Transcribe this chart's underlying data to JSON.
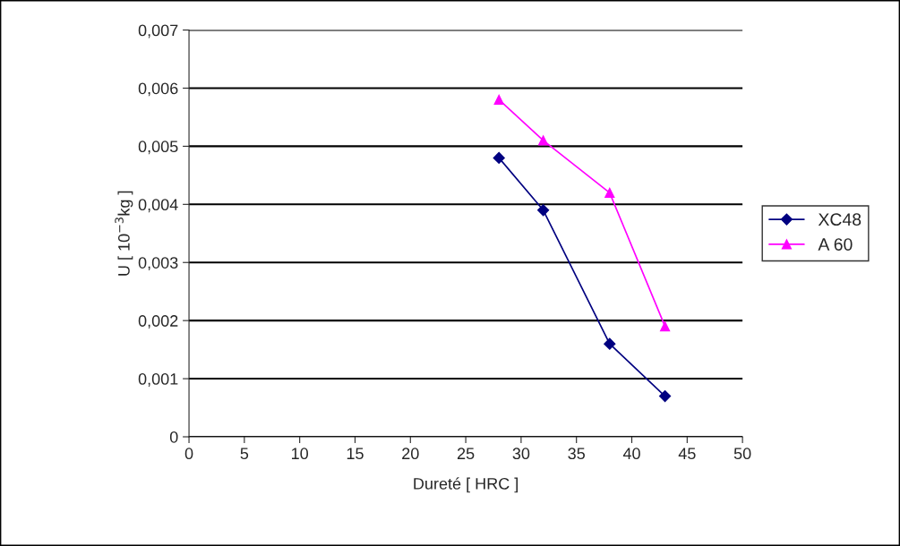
{
  "chart_data": {
    "type": "line",
    "xlabel": "Dureté [ HRC ]",
    "ylabel": "U [ 10$^{−3}$kg ]",
    "xlim": [
      0,
      50
    ],
    "xticks": [
      0,
      5,
      10,
      15,
      20,
      25,
      30,
      35,
      40,
      45,
      50
    ],
    "ylim": [
      0,
      0.007
    ],
    "yticks": [
      {
        "value": 0,
        "label": "0"
      },
      {
        "value": 0.001,
        "label": "0,001"
      },
      {
        "value": 0.002,
        "label": "0,002"
      },
      {
        "value": 0.003,
        "label": "0,003"
      },
      {
        "value": 0.004,
        "label": "0,004"
      },
      {
        "value": 0.005,
        "label": "0,005"
      },
      {
        "value": 0.006,
        "label": "0,006"
      },
      {
        "value": 0.007,
        "label": "0,007"
      }
    ],
    "grid": "y",
    "legend": "right",
    "line_style": "solid",
    "series": [
      {
        "name": "XC48",
        "color": "#000080",
        "marker": "diamond",
        "x": [
          28,
          32,
          38,
          43
        ],
        "values": [
          0.0048,
          0.0039,
          0.0016,
          0.0007
        ]
      },
      {
        "name": "A 60",
        "color": "#ff00ff",
        "marker": "triangle",
        "x": [
          28,
          32,
          38,
          43
        ],
        "values": [
          0.0058,
          0.0051,
          0.0042,
          0.0019
        ]
      }
    ]
  }
}
